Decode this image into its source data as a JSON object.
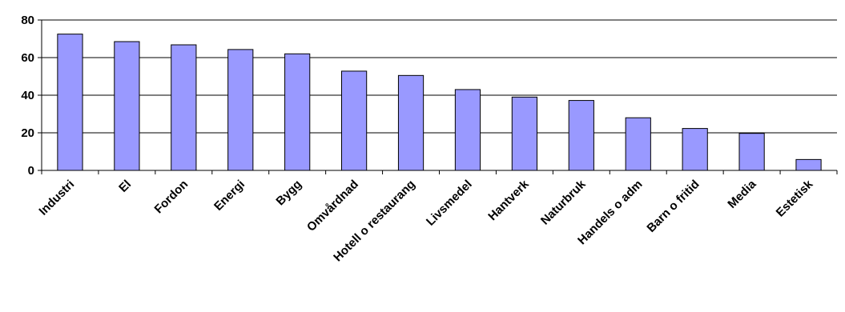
{
  "chart_data": {
    "type": "bar",
    "title": "",
    "xlabel": "",
    "ylabel": "",
    "categories": [
      "Industri",
      "El",
      "Fordon",
      "Energi",
      "Bygg",
      "Omvårdnad",
      "Hotell o restaurang",
      "Livsmedel",
      "Hantverk",
      "Naturbruk",
      "Handels o adm",
      "Barn o fritid",
      "Media",
      "Estetisk"
    ],
    "values": [
      72.5,
      68.5,
      66.8,
      64.3,
      62,
      52.8,
      50.5,
      43,
      39,
      37.2,
      28,
      22.3,
      19.7,
      5.8
    ],
    "ylim": [
      0,
      80
    ],
    "yticks": [
      0,
      20,
      40,
      60,
      80
    ],
    "grid": true,
    "legend": "none",
    "bar_color": "#9999ff",
    "bar_border": "#000000"
  }
}
